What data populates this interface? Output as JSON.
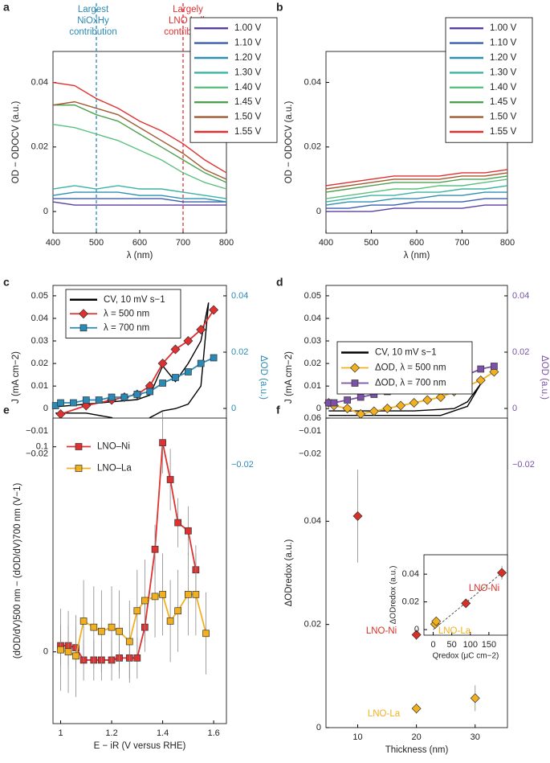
{
  "chart_data": [
    {
      "panel": "a",
      "type": "line",
      "xlabel": "λ (nm)",
      "ylabel": "OD − ODOCV (a.u.)",
      "x": [
        400,
        450,
        500,
        550,
        600,
        650,
        700,
        750,
        800
      ],
      "xlim": [
        400,
        800
      ],
      "xticks": [
        400,
        500,
        600,
        700,
        800
      ],
      "ylim": [
        -0.0067,
        0.0496
      ],
      "yticks": [
        0,
        0.02,
        0.04
      ],
      "vlines": [
        {
          "value": 500,
          "color": "#2a8ab5"
        },
        {
          "value": 700,
          "color": "#e03030"
        }
      ],
      "annotations": [
        [
          "Largest",
          "NiOxHy",
          "contribution"
        ],
        [
          "Largely",
          "LNO bulk",
          "contribution"
        ]
      ],
      "series": [
        {
          "name": "1.00 V",
          "color": "#5b3fa0",
          "values": [
            0.003,
            0.002,
            0.002,
            0.002,
            0.002,
            0.002,
            0.002,
            0.002,
            0.002
          ]
        },
        {
          "name": "1.10 V",
          "color": "#3a5db0",
          "values": [
            0.004,
            0.004,
            0.004,
            0.004,
            0.004,
            0.004,
            0.003,
            0.003,
            0.003
          ]
        },
        {
          "name": "1.20 V",
          "color": "#2f8fb0",
          "values": [
            0.005,
            0.006,
            0.006,
            0.006,
            0.005,
            0.005,
            0.004,
            0.004,
            0.003
          ]
        },
        {
          "name": "1.30 V",
          "color": "#3ab3a0",
          "values": [
            0.007,
            0.008,
            0.007,
            0.008,
            0.007,
            0.007,
            0.006,
            0.005,
            0.004
          ]
        },
        {
          "name": "1.40 V",
          "color": "#5cc080",
          "values": [
            0.027,
            0.026,
            0.024,
            0.022,
            0.019,
            0.016,
            0.012,
            0.009,
            0.007
          ]
        },
        {
          "name": "1.45 V",
          "color": "#4ea050",
          "values": [
            0.033,
            0.033,
            0.03,
            0.028,
            0.024,
            0.02,
            0.016,
            0.012,
            0.009
          ]
        },
        {
          "name": "1.50 V",
          "color": "#a05a30",
          "values": [
            0.033,
            0.034,
            0.032,
            0.03,
            0.026,
            0.022,
            0.018,
            0.013,
            0.01
          ]
        },
        {
          "name": "1.55 V",
          "color": "#e03030",
          "values": [
            0.04,
            0.039,
            0.035,
            0.032,
            0.028,
            0.025,
            0.021,
            0.016,
            0.012
          ]
        }
      ]
    },
    {
      "panel": "b",
      "type": "line",
      "xlabel": "λ (nm)",
      "ylabel": "OD − ODOCV (a.u.)",
      "x": [
        400,
        450,
        500,
        550,
        600,
        650,
        700,
        750,
        800
      ],
      "xlim": [
        400,
        800
      ],
      "xticks": [
        400,
        500,
        600,
        700,
        800
      ],
      "ylim": [
        -0.0067,
        0.0496
      ],
      "yticks": [
        0,
        0.02,
        0.04
      ],
      "series": [
        {
          "name": "1.00 V",
          "color": "#5b3fa0",
          "values": [
            0.0,
            0.0,
            0.0,
            0.001,
            0.001,
            0.001,
            0.001,
            0.002,
            0.002
          ]
        },
        {
          "name": "1.10 V",
          "color": "#3a5db0",
          "values": [
            0.001,
            0.001,
            0.002,
            0.002,
            0.003,
            0.003,
            0.003,
            0.004,
            0.004
          ]
        },
        {
          "name": "1.20 V",
          "color": "#2f8fb0",
          "values": [
            0.002,
            0.003,
            0.003,
            0.004,
            0.004,
            0.005,
            0.005,
            0.006,
            0.006
          ]
        },
        {
          "name": "1.30 V",
          "color": "#3ab3a0",
          "values": [
            0.003,
            0.004,
            0.005,
            0.005,
            0.006,
            0.006,
            0.007,
            0.007,
            0.008
          ]
        },
        {
          "name": "1.40 V",
          "color": "#5cc080",
          "values": [
            0.004,
            0.005,
            0.006,
            0.007,
            0.007,
            0.008,
            0.008,
            0.009,
            0.01
          ]
        },
        {
          "name": "1.45 V",
          "color": "#4ea050",
          "values": [
            0.006,
            0.007,
            0.008,
            0.009,
            0.009,
            0.009,
            0.01,
            0.01,
            0.011
          ]
        },
        {
          "name": "1.50 V",
          "color": "#a05a30",
          "values": [
            0.007,
            0.008,
            0.009,
            0.01,
            0.01,
            0.01,
            0.011,
            0.011,
            0.012
          ]
        },
        {
          "name": "1.55 V",
          "color": "#e03030",
          "values": [
            0.008,
            0.009,
            0.01,
            0.011,
            0.011,
            0.011,
            0.012,
            0.012,
            0.013
          ]
        }
      ]
    },
    {
      "panel": "c",
      "type": "line",
      "xlabel": "E − iR (V versus RHE)",
      "ylabel": "J (mA cm−2)",
      "y2label": "ΔOD (a.u.)",
      "y2color": "#2a8ab5",
      "xlim": [
        0.97,
        1.65
      ],
      "xticks": [
        1,
        1.2,
        1.4,
        1.6
      ],
      "ylim": [
        -0.027,
        0.0546
      ],
      "yticks": [
        {
          "value": -0.02,
          "label": "−0.02"
        },
        {
          "value": -0.01,
          "label": "−0.01"
        },
        0,
        0.01,
        0.02,
        0.03,
        0.04,
        0.05
      ],
      "y2lim": [
        -0.0217,
        0.0437
      ],
      "y2ticks": [
        {
          "value": -0.02,
          "label": "−0.02"
        },
        0,
        0.02,
        0.04
      ],
      "series": [
        {
          "name": "CV, 10 mV s−1",
          "color": "#000000",
          "x": [
            0.98,
            1.0,
            1.1,
            1.2,
            1.3,
            1.35,
            1.4,
            1.45,
            1.5,
            1.55,
            1.58,
            1.55,
            1.5,
            1.45,
            1.4,
            1.35,
            1.3,
            1.28,
            1.25,
            1.2,
            1.1,
            1.0,
            0.98
          ],
          "values": [
            0.001,
            0.001,
            0.002,
            0.003,
            0.004,
            0.006,
            0.019,
            0.012,
            0.02,
            0.03,
            0.047,
            0.01,
            0.002,
            0.0,
            -0.001,
            -0.004,
            -0.012,
            -0.014,
            -0.008,
            -0.004,
            -0.002,
            -0.002,
            -0.002
          ]
        },
        {
          "name": "λ = 500 nm",
          "color": "#e03030",
          "marker": "diamond",
          "axis": "y2",
          "x": [
            1.0,
            1.1,
            1.2,
            1.25,
            1.3,
            1.35,
            1.4,
            1.45,
            1.5,
            1.55,
            1.6
          ],
          "values": [
            -0.002,
            0.001,
            0.003,
            0.004,
            0.005,
            0.008,
            0.016,
            0.021,
            0.024,
            0.028,
            0.035
          ]
        },
        {
          "name": "λ = 700 nm",
          "color": "#2a8ab5",
          "marker": "square",
          "axis": "y2",
          "x": [
            0.98,
            1.0,
            1.05,
            1.1,
            1.15,
            1.2,
            1.25,
            1.3,
            1.35,
            1.4,
            1.45,
            1.5,
            1.55,
            1.6
          ],
          "values": [
            0.001,
            0.002,
            0.002,
            0.003,
            0.003,
            0.004,
            0.004,
            0.005,
            0.006,
            0.009,
            0.011,
            0.013,
            0.016,
            0.018
          ]
        }
      ]
    },
    {
      "panel": "d",
      "type": "line",
      "xlabel": "E − iR (V versus RHE)",
      "ylabel": "J (mA cm−2)",
      "y2label": "ΔOD (a.u.)",
      "y2color": "#7b52a8",
      "xlim": [
        0.97,
        1.65
      ],
      "xticks": [
        1,
        1.2,
        1.4,
        1.6
      ],
      "ylim": [
        -0.027,
        0.0546
      ],
      "yticks": [
        {
          "value": -0.02,
          "label": "−0.02"
        },
        {
          "value": -0.01,
          "label": "−0.01"
        },
        0,
        0.01,
        0.02,
        0.03,
        0.04,
        0.05
      ],
      "y2lim": [
        -0.0217,
        0.0437
      ],
      "y2ticks": [
        {
          "value": -0.02,
          "label": "−0.02"
        },
        0,
        0.02,
        0.04
      ],
      "series": [
        {
          "name": "CV, 10 mV s−1",
          "color": "#000000",
          "x": [
            0.98,
            1.1,
            1.3,
            1.45,
            1.5,
            1.55,
            1.5,
            1.4,
            1.2,
            1.0,
            0.98
          ],
          "values": [
            -0.001,
            -0.001,
            -0.001,
            0.0,
            0.003,
            0.011,
            0.001,
            -0.003,
            -0.003,
            -0.003,
            -0.003
          ]
        },
        {
          "name": "ΔOD, λ = 500 nm",
          "color": "#f2b01e",
          "marker": "diamond",
          "axis": "y2",
          "x": [
            0.98,
            1.0,
            1.05,
            1.1,
            1.15,
            1.2,
            1.25,
            1.3,
            1.35,
            1.4,
            1.45,
            1.5,
            1.55,
            1.6
          ],
          "values": [
            0.002,
            0.001,
            0.0,
            -0.002,
            -0.001,
            0.0,
            0.001,
            0.002,
            0.003,
            0.004,
            0.006,
            0.008,
            0.01,
            0.013
          ]
        },
        {
          "name": "ΔOD, λ = 700 nm",
          "color": "#7b52a8",
          "marker": "square",
          "axis": "y2",
          "x": [
            0.98,
            1.0,
            1.05,
            1.1,
            1.15,
            1.2,
            1.25,
            1.3,
            1.35,
            1.4,
            1.45,
            1.5,
            1.55,
            1.6
          ],
          "values": [
            0.002,
            0.002,
            0.003,
            0.004,
            0.005,
            0.006,
            0.007,
            0.008,
            0.009,
            0.01,
            0.011,
            0.012,
            0.014,
            0.015
          ]
        }
      ]
    },
    {
      "panel": "e",
      "type": "errorbar",
      "xlabel": "E − iR (V versus RHE)",
      "ylabel": "(dOD/dV)500 nm − (dOD/dV)700 nm (V−1)",
      "xlim": [
        0.97,
        1.65
      ],
      "xticks": [
        1,
        1.2,
        1.4,
        1.6
      ],
      "ylim": [
        -0.035,
        0.114
      ],
      "yticks": [
        0,
        0.1
      ],
      "series": [
        {
          "name": "LNO–Ni",
          "color": "#e03030",
          "marker": "square",
          "x": [
            1.0,
            1.03,
            1.06,
            1.09,
            1.13,
            1.16,
            1.2,
            1.23,
            1.27,
            1.3,
            1.33,
            1.37,
            1.4,
            1.43,
            1.46,
            1.5,
            1.53
          ],
          "values": [
            0.003,
            0.003,
            0.002,
            -0.004,
            -0.004,
            -0.004,
            -0.004,
            -0.003,
            -0.003,
            -0.003,
            0.012,
            0.05,
            0.102,
            0.084,
            0.063,
            0.059,
            0.04
          ],
          "errors": [
            0.01,
            0.01,
            0.01,
            0.01,
            0.01,
            0.01,
            0.01,
            0.01,
            0.01,
            0.01,
            0.012,
            0.012,
            0.015,
            0.015,
            0.012,
            0.012,
            0.012
          ]
        },
        {
          "name": "LNO–La",
          "color": "#f2b01e",
          "marker": "square",
          "x": [
            1.0,
            1.03,
            1.06,
            1.09,
            1.13,
            1.16,
            1.2,
            1.23,
            1.27,
            1.3,
            1.33,
            1.37,
            1.4,
            1.43,
            1.46,
            1.5,
            1.53,
            1.57
          ],
          "values": [
            0.001,
            0.0,
            -0.002,
            0.015,
            0.012,
            0.01,
            0.012,
            0.01,
            0.005,
            0.02,
            0.025,
            0.027,
            0.028,
            0.015,
            0.02,
            0.028,
            0.028,
            0.009
          ],
          "errors": [
            0.02,
            0.02,
            0.02,
            0.02,
            0.02,
            0.02,
            0.02,
            0.02,
            0.02,
            0.02,
            0.02,
            0.02,
            0.02,
            0.02,
            0.02,
            0.02,
            0.02,
            0.02
          ]
        }
      ]
    },
    {
      "panel": "f",
      "type": "scatter",
      "xlabel": "Thickness (nm)",
      "ylabel": "ΔODredox (a.u.)",
      "xlim": [
        4.6,
        35.5
      ],
      "xticks": [
        10,
        20,
        30
      ],
      "ylim": [
        0,
        0.06
      ],
      "yticks": [
        0,
        0.02,
        0.04,
        0.06
      ],
      "series": [
        {
          "name": "LNO-Ni",
          "color": "#d93025",
          "marker": "diamond",
          "x": [
            10,
            20,
            30
          ],
          "values": [
            0.041,
            0.018,
            0.0195
          ],
          "errors": [
            0.009,
            0.001,
            0.0015
          ]
        },
        {
          "name": "LNO-La",
          "color": "#f2b01e",
          "marker": "diamond",
          "x": [
            20,
            30
          ],
          "values": [
            0.0037,
            0.0057
          ],
          "errors": [
            0.001,
            0.0025
          ]
        }
      ]
    },
    {
      "type": "scatter",
      "xlabel": "Qredox (μC cm−2)",
      "ylabel": "ΔODredox (a.u.)",
      "xlim": [
        -25,
        200
      ],
      "xticks": [
        0,
        50,
        100,
        150
      ],
      "ylim": [
        -0.004,
        0.054
      ],
      "yticks": [
        0,
        0.02,
        0.04
      ],
      "trend_line": {
        "x": [
          0,
          190
        ],
        "values": [
          0,
          0.042
        ]
      },
      "series": [
        {
          "name": "LNO-Ni",
          "color": "#d93025",
          "marker": "diamond",
          "x": [
            88,
            185
          ],
          "values": [
            0.019,
            0.041
          ],
          "errors": [
            0.002,
            0.005
          ]
        },
        {
          "name": "LNO-La",
          "color": "#f2b01e",
          "marker": "diamond",
          "x": [
            5,
            8
          ],
          "values": [
            0.004,
            0.006
          ],
          "errors": [
            0.001,
            0.001
          ]
        }
      ]
    }
  ]
}
